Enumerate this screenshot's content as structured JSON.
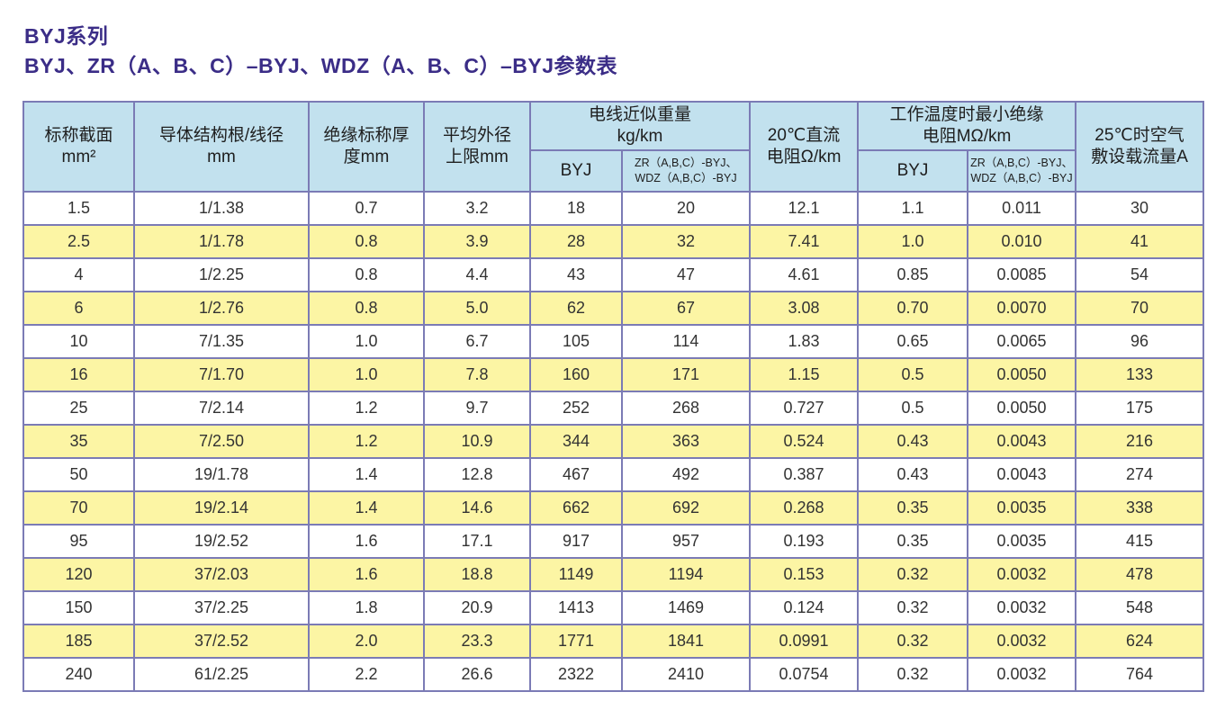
{
  "title": {
    "line1": "BYJ系列",
    "line2": "BYJ、ZR（A、B、C）–BYJ、WDZ（A、B、C）–BYJ参数表"
  },
  "colors": {
    "title_text": "#3b2d87",
    "header_bg": "#c2e1ee",
    "row_alt_bg": "#fcf5a4",
    "grid_border": "#7b7bb5",
    "body_text": "#333333"
  },
  "table": {
    "headers": {
      "nominal_section": [
        "标称截面",
        "mm²"
      ],
      "conductor_structure": [
        "导体结构根/线径",
        "mm"
      ],
      "insulation_thickness": [
        "绝缘标称厚",
        "度mm"
      ],
      "mean_outer_diameter": [
        "平均外径",
        "上限mm"
      ],
      "weight_group": [
        "电线近似重量",
        "kg/km"
      ],
      "weight_byj": "BYJ",
      "weight_zr_wdz": [
        "ZR（A,B,C）-BYJ、",
        "WDZ（A,B,C）-BYJ"
      ],
      "dc_resistance": [
        "20℃直流",
        "电阻Ω/km"
      ],
      "insulation_resistance_group": [
        "工作温度时最小绝缘",
        "电阻MΩ/km"
      ],
      "ins_res_byj": "BYJ",
      "ins_res_zr_wdz": [
        "ZR（A,B,C）-BYJ、",
        "WDZ（A,B,C）-BYJ"
      ],
      "ampacity": [
        "25℃时空气",
        "敷设载流量A"
      ]
    },
    "rows": [
      [
        "1.5",
        "1/1.38",
        "0.7",
        "3.2",
        "18",
        "20",
        "12.1",
        "1.1",
        "0.011",
        "30"
      ],
      [
        "2.5",
        "1/1.78",
        "0.8",
        "3.9",
        "28",
        "32",
        "7.41",
        "1.0",
        "0.010",
        "41"
      ],
      [
        "4",
        "1/2.25",
        "0.8",
        "4.4",
        "43",
        "47",
        "4.61",
        "0.85",
        "0.0085",
        "54"
      ],
      [
        "6",
        "1/2.76",
        "0.8",
        "5.0",
        "62",
        "67",
        "3.08",
        "0.70",
        "0.0070",
        "70"
      ],
      [
        "10",
        "7/1.35",
        "1.0",
        "6.7",
        "105",
        "114",
        "1.83",
        "0.65",
        "0.0065",
        "96"
      ],
      [
        "16",
        "7/1.70",
        "1.0",
        "7.8",
        "160",
        "171",
        "1.15",
        "0.5",
        "0.0050",
        "133"
      ],
      [
        "25",
        "7/2.14",
        "1.2",
        "9.7",
        "252",
        "268",
        "0.727",
        "0.5",
        "0.0050",
        "175"
      ],
      [
        "35",
        "7/2.50",
        "1.2",
        "10.9",
        "344",
        "363",
        "0.524",
        "0.43",
        "0.0043",
        "216"
      ],
      [
        "50",
        "19/1.78",
        "1.4",
        "12.8",
        "467",
        "492",
        "0.387",
        "0.43",
        "0.0043",
        "274"
      ],
      [
        "70",
        "19/2.14",
        "1.4",
        "14.6",
        "662",
        "692",
        "0.268",
        "0.35",
        "0.0035",
        "338"
      ],
      [
        "95",
        "19/2.52",
        "1.6",
        "17.1",
        "917",
        "957",
        "0.193",
        "0.35",
        "0.0035",
        "415"
      ],
      [
        "120",
        "37/2.03",
        "1.6",
        "18.8",
        "1149",
        "1194",
        "0.153",
        "0.32",
        "0.0032",
        "478"
      ],
      [
        "150",
        "37/2.25",
        "1.8",
        "20.9",
        "1413",
        "1469",
        "0.124",
        "0.32",
        "0.0032",
        "548"
      ],
      [
        "185",
        "37/2.52",
        "2.0",
        "23.3",
        "1771",
        "1841",
        "0.0991",
        "0.32",
        "0.0032",
        "624"
      ],
      [
        "240",
        "61/2.25",
        "2.2",
        "26.6",
        "2322",
        "2410",
        "0.0754",
        "0.32",
        "0.0032",
        "764"
      ]
    ]
  }
}
